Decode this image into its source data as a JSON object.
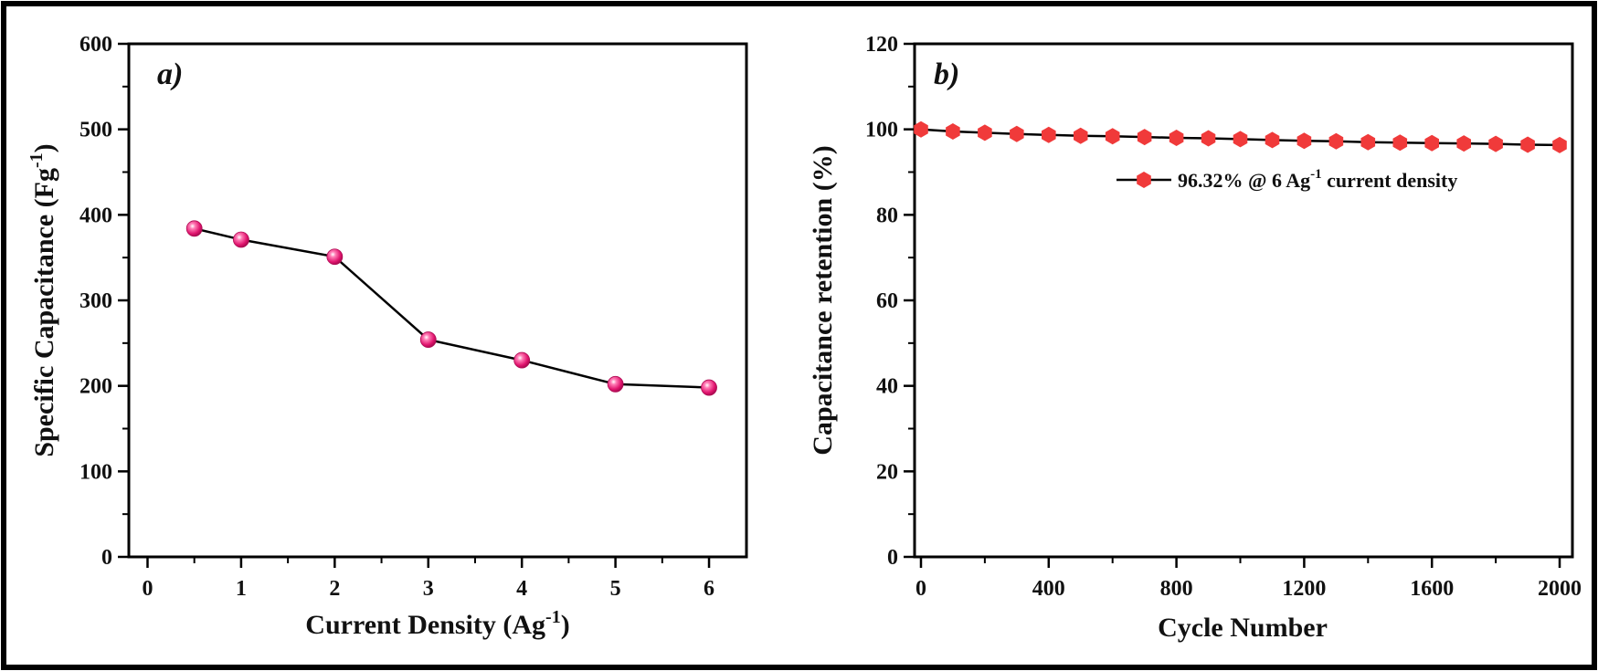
{
  "chart_data": [
    {
      "type": "line",
      "panel_label": "a)",
      "xlabel": "Current Density (Ag",
      "xlabel_sup": "-1",
      "xlabel_tail": ")",
      "ylabel": "Specific Capacitance (Fg",
      "ylabel_sup": "-1",
      "ylabel_tail": ")",
      "xlim": [
        -0.2,
        6.4
      ],
      "ylim": [
        0,
        600
      ],
      "x_ticks": [
        0,
        1,
        2,
        3,
        4,
        5,
        6
      ],
      "x_minor_ticks": [
        0.5,
        1.5,
        2.5,
        3.5,
        4.5,
        5.5
      ],
      "y_ticks": [
        0,
        100,
        200,
        300,
        400,
        500,
        600
      ],
      "y_minor_ticks": [
        50,
        150,
        250,
        350,
        450,
        550
      ],
      "x_tick_labels": [
        "0",
        "1",
        "2",
        "3",
        "4",
        "5",
        "6"
      ],
      "y_tick_labels": [
        "0",
        "100",
        "200",
        "300",
        "400",
        "500",
        "600"
      ],
      "grid": false,
      "line_color": "#000000",
      "marker_color": "#e8207a",
      "marker": "sphere",
      "series": [
        {
          "x": [
            0.5,
            1,
            2,
            3,
            4,
            5,
            6
          ],
          "y": [
            384,
            371,
            351,
            254,
            230,
            202,
            198
          ]
        }
      ]
    },
    {
      "type": "line",
      "panel_label": "b)",
      "xlabel": "Cycle Number",
      "ylabel": "Capacitance retention (%)",
      "xlim": [
        -20,
        2040
      ],
      "ylim": [
        0,
        120
      ],
      "x_ticks": [
        0,
        400,
        800,
        1200,
        1600,
        2000
      ],
      "x_minor_ticks": [
        200,
        600,
        1000,
        1400,
        1800
      ],
      "y_ticks": [
        0,
        20,
        40,
        60,
        80,
        100,
        120
      ],
      "y_minor_ticks": [
        10,
        30,
        50,
        70,
        90,
        110
      ],
      "x_tick_labels": [
        "0",
        "400",
        "800",
        "1200",
        "1600",
        "2000"
      ],
      "y_tick_labels": [
        "0",
        "20",
        "40",
        "60",
        "80",
        "100",
        "120"
      ],
      "grid": false,
      "legend_position": "top-right",
      "line_color": "#000000",
      "marker_color": "#f03a3a",
      "marker": "hexagon",
      "series": [
        {
          "name": "96.32% @ 6 Ag",
          "name_sup": "-1",
          "name_tail": " current density",
          "x": [
            0,
            100,
            200,
            300,
            400,
            500,
            600,
            700,
            800,
            900,
            1000,
            1100,
            1200,
            1300,
            1400,
            1500,
            1600,
            1700,
            1800,
            1900,
            2000
          ],
          "y": [
            100,
            99.5,
            99.2,
            98.9,
            98.7,
            98.5,
            98.4,
            98.2,
            98.0,
            97.9,
            97.7,
            97.5,
            97.3,
            97.2,
            97.0,
            96.9,
            96.8,
            96.7,
            96.6,
            96.4,
            96.32
          ]
        }
      ]
    }
  ]
}
